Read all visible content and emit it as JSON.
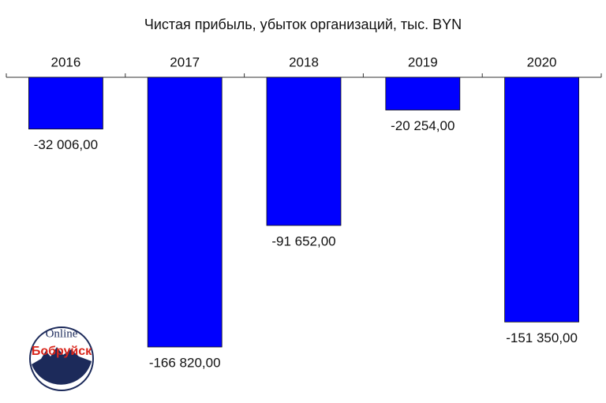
{
  "chart_data": {
    "type": "bar",
    "title": "Чистая прибыль, убыток организаций, тыс. BYN",
    "categories": [
      "2016",
      "2017",
      "2018",
      "2019",
      "2020"
    ],
    "values": [
      -32006,
      -166820,
      -91652,
      -20254,
      -151350
    ],
    "value_labels": [
      "-32 006,00",
      "-166 820,00",
      "-91 652,00",
      "-20 254,00",
      "-151 350,00"
    ],
    "color": "#0000ff",
    "ylim": [
      -200000,
      0
    ]
  },
  "logo": {
    "top": "Online",
    "bottom": "Бобруйск"
  }
}
